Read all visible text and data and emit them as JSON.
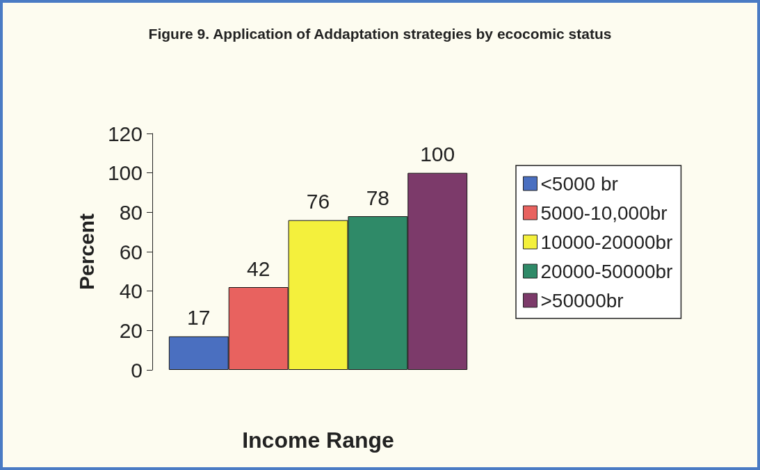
{
  "chart_data": {
    "type": "bar",
    "title": "Figure 9. Application of Addaptation strategies by ecocomic status",
    "xlabel": "Income Range",
    "ylabel": "Percent",
    "categories": [
      null
    ],
    "series": [
      {
        "name": "<5000 br",
        "color": "#4a6fc0",
        "values": [
          17
        ]
      },
      {
        "name": "5000-10,000br",
        "color": "#e8625f",
        "values": [
          42
        ]
      },
      {
        "name": "10000-20000br",
        "color": "#f4f03c",
        "values": [
          76
        ]
      },
      {
        "name": "20000-50000br",
        "color": "#2f8a68",
        "values": [
          78
        ]
      },
      {
        "name": ">50000br",
        "color": "#7c3a6a",
        "values": [
          100
        ]
      }
    ],
    "ylim": [
      0,
      120
    ],
    "yticks": [
      0,
      20,
      40,
      60,
      80,
      100,
      120
    ],
    "grid": false,
    "legend": "right",
    "data_labels": true
  }
}
